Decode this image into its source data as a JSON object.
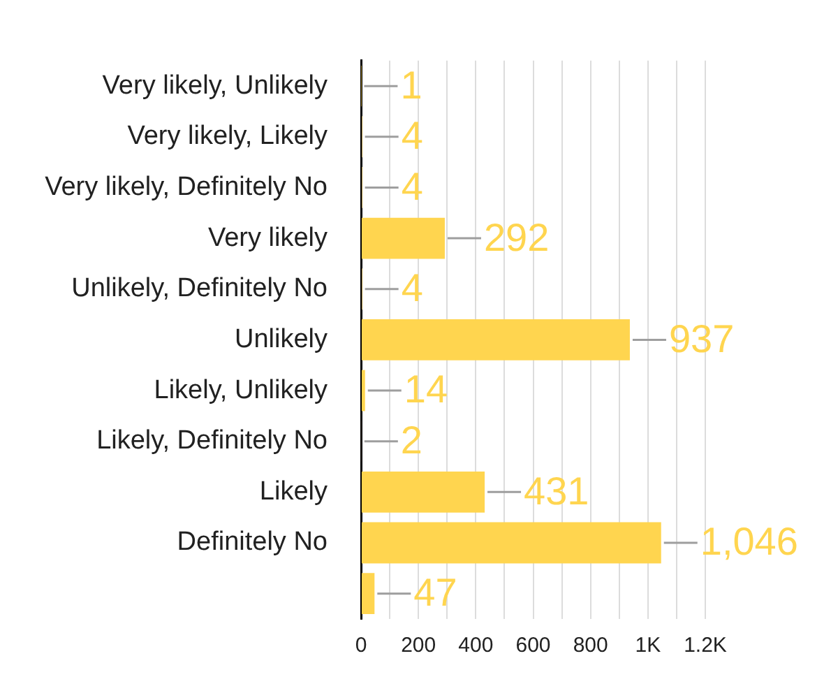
{
  "chart_data": {
    "type": "bar",
    "orientation": "horizontal",
    "categories": [
      "Very likely, Unlikely",
      "Very likely, Likely",
      "Very likely, Definitely No",
      "Very likely",
      "Unlikely, Definitely No",
      "Unlikely",
      "Likely, Unlikely",
      "Likely, Definitely No",
      "Likely",
      "Definitely No",
      null
    ],
    "values": [
      1,
      4,
      4,
      292,
      4,
      937,
      14,
      2,
      431,
      1046,
      47
    ],
    "value_labels": [
      "1",
      "4",
      "4",
      "292",
      "4",
      "937",
      "14",
      "2",
      "431",
      "1,046",
      "47"
    ],
    "color": "#ffd54f",
    "xlim": [
      0,
      1200
    ],
    "xticks": [
      0,
      {
        "value": 100,
        "label": null
      },
      200,
      {
        "value": 300,
        "label": null
      },
      400,
      {
        "value": 500,
        "label": null
      },
      600,
      {
        "value": 700,
        "label": null
      },
      800,
      {
        "value": 900,
        "label": null
      },
      {
        "value": 1000,
        "label": "1K"
      },
      {
        "value": 1100,
        "label": null
      },
      {
        "value": 1200,
        "label": "1.2K"
      }
    ],
    "grid": "x",
    "legend": false
  }
}
